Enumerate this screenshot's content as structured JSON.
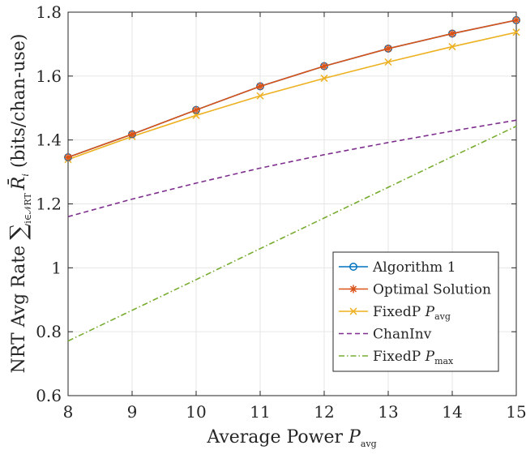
{
  "chart_data": {
    "type": "line",
    "title": "",
    "xlabel": "Average Power P_avg",
    "xlabel_parts": {
      "main": "Average Power ",
      "symbol": "P",
      "subscript": "avg"
    },
    "ylabel": "NRT Avg Rate Σ_{i∈N_RT} R̄_i (bits/chan-use)",
    "ylabel_parts": {
      "main": "NRT Avg Rate ",
      "sum": "∑",
      "sum_subscript": "i∈𝒩RT",
      "symbol": "R̄",
      "symbol_subscript": "i",
      "unit": " (bits/chan-use)"
    },
    "xlim": [
      8,
      15
    ],
    "ylim": [
      0.6,
      1.8
    ],
    "xticks": [
      8,
      9,
      10,
      11,
      12,
      13,
      14,
      15
    ],
    "yticks": [
      0.6,
      0.8,
      1,
      1.2,
      1.4,
      1.6,
      1.8
    ],
    "xtick_labels": [
      "8",
      "9",
      "10",
      "11",
      "12",
      "13",
      "14",
      "15"
    ],
    "ytick_labels": [
      "0.6",
      "0.8",
      "1",
      "1.2",
      "1.4",
      "1.6",
      "1.8"
    ],
    "grid": true,
    "legend_position": "bottom-right",
    "x": [
      8,
      9,
      10,
      11,
      12,
      13,
      14,
      15
    ],
    "series": [
      {
        "name": "Algorithm 1",
        "legend_parts": {
          "main": "Algorithm 1",
          "symbol": "",
          "subscript": ""
        },
        "values": [
          1.346,
          1.418,
          1.494,
          1.568,
          1.631,
          1.686,
          1.733,
          1.775
        ],
        "color": "#0072BD",
        "marker": "circle",
        "dash": "solid"
      },
      {
        "name": "Optimal Solution",
        "legend_parts": {
          "main": "Optimal Solution",
          "symbol": "",
          "subscript": ""
        },
        "values": [
          1.346,
          1.418,
          1.494,
          1.568,
          1.631,
          1.686,
          1.733,
          1.775
        ],
        "color": "#D95319",
        "marker": "asterisk",
        "dash": "solid"
      },
      {
        "name": "FixedP P_avg",
        "legend_parts": {
          "main": "FixedP ",
          "symbol": "P",
          "subscript": "avg"
        },
        "values": [
          1.339,
          1.411,
          1.477,
          1.538,
          1.593,
          1.644,
          1.692,
          1.737
        ],
        "color": "#EDB120",
        "marker": "x",
        "dash": "solid"
      },
      {
        "name": "ChanInv",
        "legend_parts": {
          "main": "ChanInv",
          "symbol": "",
          "subscript": ""
        },
        "values": [
          1.16,
          1.215,
          1.265,
          1.312,
          1.354,
          1.392,
          1.428,
          1.462
        ],
        "color": "#7E2F8E",
        "marker": "none",
        "dash": "dashed"
      },
      {
        "name": "FixedP P_max",
        "legend_parts": {
          "main": "FixedP ",
          "symbol": "P",
          "subscript": "max"
        },
        "values": [
          0.771,
          0.867,
          0.963,
          1.06,
          1.156,
          1.252,
          1.348,
          1.443
        ],
        "color": "#77AC30",
        "marker": "none",
        "dash": "dashdot"
      }
    ]
  }
}
